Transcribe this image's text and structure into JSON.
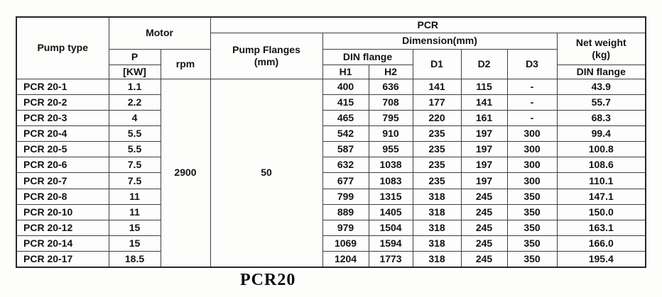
{
  "colors": {
    "border_inner": "#3a3f4a",
    "border_outer": "#26262b",
    "text": "#131316",
    "background": "#fdfdfb"
  },
  "table": {
    "headers": {
      "pump_type": "Pump type",
      "motor": "Motor",
      "pcr": "PCR",
      "p": "P",
      "p_unit": "[KW]",
      "rpm": "rpm",
      "pump_flanges_line1": "Pump Flanges",
      "pump_flanges_line2": "(mm)",
      "dimension": "Dimension(mm)",
      "din_flange": "DIN flange",
      "h1": "H1",
      "h2": "H2",
      "d1": "D1",
      "d2": "D2",
      "d3": "D3",
      "net_weight_line1": "Net weight",
      "net_weight_line2": "(kg)",
      "net_weight_din_flange": "DIN flange"
    },
    "shared": {
      "rpm_value": "2900",
      "pump_flanges_value": "50"
    },
    "rows": [
      {
        "pump_type": "PCR 20-1",
        "p_kw": "1.1",
        "h1": "400",
        "h2": "636",
        "d1": "141",
        "d2": "115",
        "d3": "-",
        "net_weight": "43.9"
      },
      {
        "pump_type": "PCR 20-2",
        "p_kw": "2.2",
        "h1": "415",
        "h2": "708",
        "d1": "177",
        "d2": "141",
        "d3": "-",
        "net_weight": "55.7"
      },
      {
        "pump_type": "PCR 20-3",
        "p_kw": "4",
        "h1": "465",
        "h2": "795",
        "d1": "220",
        "d2": "161",
        "d3": "-",
        "net_weight": "68.3"
      },
      {
        "pump_type": "PCR 20-4",
        "p_kw": "5.5",
        "h1": "542",
        "h2": "910",
        "d1": "235",
        "d2": "197",
        "d3": "300",
        "net_weight": "99.4"
      },
      {
        "pump_type": "PCR 20-5",
        "p_kw": "5.5",
        "h1": "587",
        "h2": "955",
        "d1": "235",
        "d2": "197",
        "d3": "300",
        "net_weight": "100.8"
      },
      {
        "pump_type": "PCR 20-6",
        "p_kw": "7.5",
        "h1": "632",
        "h2": "1038",
        "d1": "235",
        "d2": "197",
        "d3": "300",
        "net_weight": "108.6"
      },
      {
        "pump_type": "PCR 20-7",
        "p_kw": "7.5",
        "h1": "677",
        "h2": "1083",
        "d1": "235",
        "d2": "197",
        "d3": "300",
        "net_weight": "110.1"
      },
      {
        "pump_type": "PCR 20-8",
        "p_kw": "11",
        "h1": "799",
        "h2": "1315",
        "d1": "318",
        "d2": "245",
        "d3": "350",
        "net_weight": "147.1"
      },
      {
        "pump_type": "PCR 20-10",
        "p_kw": "11",
        "h1": "889",
        "h2": "1405",
        "d1": "318",
        "d2": "245",
        "d3": "350",
        "net_weight": "150.0"
      },
      {
        "pump_type": "PCR 20-12",
        "p_kw": "15",
        "h1": "979",
        "h2": "1504",
        "d1": "318",
        "d2": "245",
        "d3": "350",
        "net_weight": "163.1"
      },
      {
        "pump_type": "PCR 20-14",
        "p_kw": "15",
        "h1": "1069",
        "h2": "1594",
        "d1": "318",
        "d2": "245",
        "d3": "350",
        "net_weight": "166.0"
      },
      {
        "pump_type": "PCR 20-17",
        "p_kw": "18.5",
        "h1": "1204",
        "h2": "1773",
        "d1": "318",
        "d2": "245",
        "d3": "350",
        "net_weight": "195.4"
      }
    ]
  },
  "caption": "PCR20"
}
